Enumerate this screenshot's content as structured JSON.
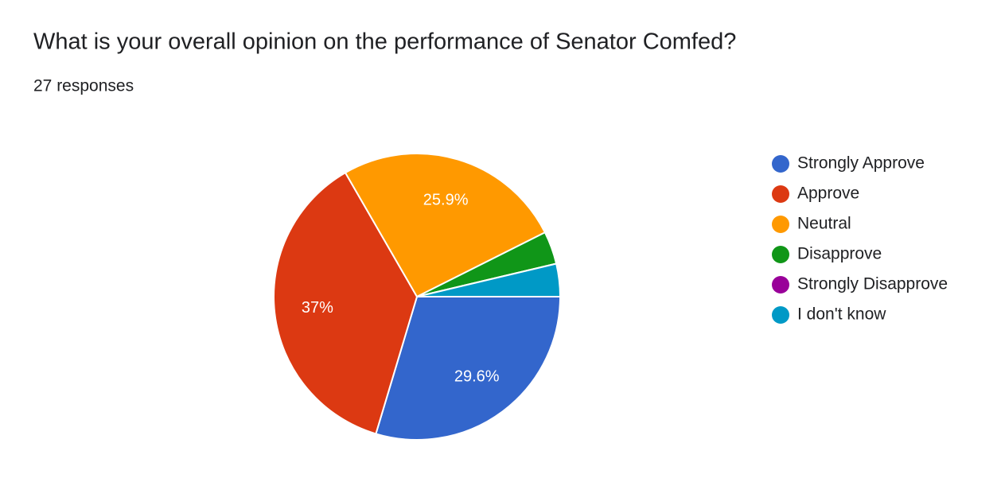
{
  "chart_data": {
    "type": "pie",
    "title": "What is your overall opinion on the performance of Senator Comfed?",
    "subtitle": "27 responses",
    "categories": [
      "Strongly Approve",
      "Approve",
      "Neutral",
      "Disapprove",
      "Strongly Disapprove",
      "I don't know"
    ],
    "values": [
      29.6,
      37,
      25.9,
      3.7,
      0,
      3.7
    ],
    "value_labels": [
      "29.6%",
      "37%",
      "25.9%",
      null,
      null,
      null
    ],
    "colors": [
      "#3366cc",
      "#dc3912",
      "#ff9900",
      "#109618",
      "#990099",
      "#0099c6"
    ],
    "legend": "right"
  }
}
